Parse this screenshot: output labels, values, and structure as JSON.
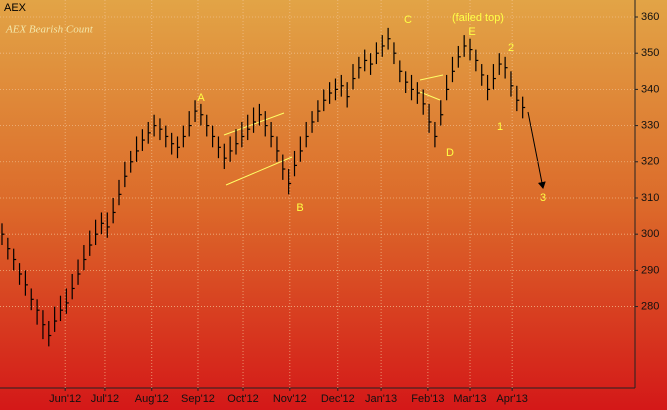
{
  "chart_data": {
    "type": "ohlc",
    "name": "AEX",
    "title": "AEX Bearish Count",
    "annotations": [
      "A",
      "B",
      "C",
      "D",
      "E",
      "(failed top)",
      "1",
      "2",
      "3"
    ],
    "x": [
      0,
      1,
      2,
      3,
      4,
      5,
      6,
      7,
      8,
      9,
      10,
      11,
      12,
      13,
      14,
      15,
      16,
      17,
      18,
      19,
      20,
      21,
      22,
      23,
      24,
      25,
      26,
      27,
      28,
      29,
      30,
      31,
      32,
      33,
      34,
      35,
      36,
      37,
      38,
      39,
      40,
      41,
      42,
      43,
      44,
      45,
      46,
      47,
      48,
      49,
      50,
      51,
      52,
      53,
      54,
      55,
      56,
      57,
      58,
      59,
      60,
      61,
      62,
      63,
      64,
      65,
      66,
      67,
      68,
      69,
      70,
      71,
      72,
      73,
      74,
      75,
      76,
      77,
      78,
      79,
      80,
      81,
      82,
      83,
      84,
      85,
      86,
      87,
      88,
      89
    ],
    "high": [
      303,
      299,
      296,
      292,
      290,
      285,
      282,
      279,
      276,
      280,
      283,
      285,
      289,
      293,
      297,
      301,
      304,
      306,
      306,
      310,
      315,
      320,
      323,
      327,
      329,
      331,
      333,
      332,
      330,
      328,
      327,
      330,
      334,
      337,
      336,
      333,
      330,
      327,
      325,
      327,
      329,
      331,
      333,
      335,
      336,
      334,
      331,
      327,
      322,
      318,
      323,
      327,
      331,
      334,
      337,
      340,
      342,
      343,
      344,
      342,
      347,
      349,
      351,
      350,
      353,
      355,
      357,
      353,
      348,
      345,
      344,
      342,
      340,
      336,
      331,
      337,
      344,
      349,
      352,
      355,
      354,
      351,
      347,
      344,
      347,
      350,
      349,
      345,
      341,
      338
    ],
    "low": [
      297,
      293,
      290,
      286,
      283,
      279,
      275,
      271,
      269,
      273,
      276,
      278,
      282,
      286,
      290,
      294,
      297,
      300,
      299,
      303,
      308,
      313,
      317,
      320,
      323,
      325,
      327,
      326,
      324,
      322,
      321,
      324,
      327,
      331,
      330,
      327,
      324,
      321,
      318,
      320,
      322,
      324,
      326,
      328,
      330,
      327,
      324,
      320,
      315,
      311,
      316,
      320,
      324,
      328,
      331,
      334,
      336,
      337,
      338,
      335,
      340,
      343,
      345,
      344,
      347,
      349,
      351,
      347,
      342,
      339,
      337,
      336,
      333,
      328,
      324,
      330,
      337,
      342,
      346,
      349,
      348,
      345,
      341,
      337,
      340,
      344,
      343,
      338,
      334,
      332
    ],
    "close": [
      300,
      296,
      293,
      289,
      286,
      282,
      279,
      275,
      272,
      276,
      279,
      281,
      285,
      289,
      293,
      297,
      300,
      303,
      302,
      306,
      311,
      316,
      320,
      323,
      326,
      328,
      330,
      329,
      327,
      325,
      324,
      327,
      330,
      334,
      333,
      330,
      327,
      324,
      321,
      323,
      325,
      327,
      329,
      331,
      333,
      330,
      327,
      323,
      318,
      314,
      319,
      323,
      327,
      331,
      334,
      337,
      339,
      340,
      341,
      338,
      343,
      346,
      348,
      347,
      350,
      352,
      354,
      350,
      345,
      342,
      340,
      339,
      336,
      331,
      327,
      333,
      340,
      345,
      349,
      352,
      351,
      348,
      344,
      340,
      343,
      347,
      346,
      341,
      337,
      335
    ],
    "color": "#000000",
    "xlim": [
      -0.34,
      108.2
    ],
    "xticks": [
      {
        "value": 10.8,
        "label": "Jun'12"
      },
      {
        "value": 17.6,
        "label": "Jul'12"
      },
      {
        "value": 25.6,
        "label": "Aug'12"
      },
      {
        "value": 33.5,
        "label": "Sep'12"
      },
      {
        "value": 41.2,
        "label": "Oct'12"
      },
      {
        "value": 49.2,
        "label": "Nov'12"
      },
      {
        "value": 57.4,
        "label": "Dec'12"
      },
      {
        "value": 64.8,
        "label": "Jan'13"
      },
      {
        "value": 72.8,
        "label": "Feb'13"
      },
      {
        "value": 80.0,
        "label": "Mar'13"
      },
      {
        "value": 87.2,
        "label": "Apr'13"
      }
    ],
    "ylim": [
      257.5,
      364.7
    ],
    "yticks": [
      280,
      290,
      300,
      310,
      320,
      330,
      340,
      350,
      360
    ],
    "y_axis_side": "right",
    "grid": true
  }
}
